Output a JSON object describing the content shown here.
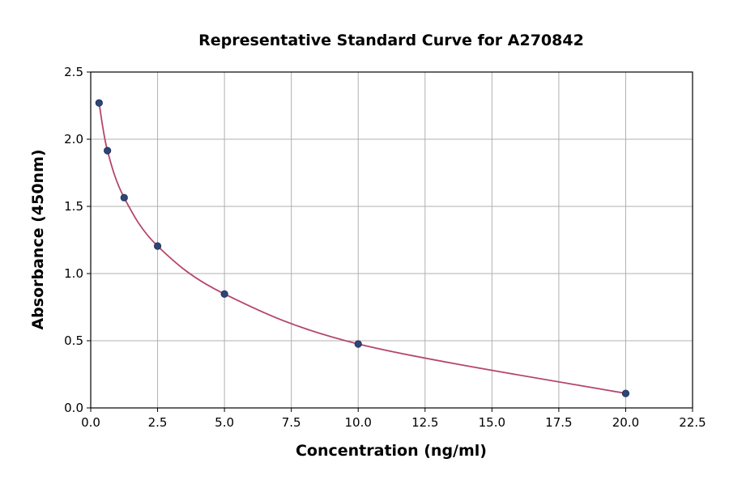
{
  "chart_data": {
    "type": "scatter",
    "title": "Representative Standard Curve for A270842",
    "xlabel": "Concentration (ng/ml)",
    "ylabel": "Absorbance (450nm)",
    "xlim": [
      0,
      22.5
    ],
    "ylim": [
      0,
      2.5
    ],
    "xticks": [
      "0.0",
      "2.5",
      "5.0",
      "7.5",
      "10.0",
      "12.5",
      "15.0",
      "17.5",
      "20.0",
      "22.5"
    ],
    "yticks": [
      "0.0",
      "0.5",
      "1.0",
      "1.5",
      "2.0",
      "2.5"
    ],
    "grid": true,
    "series": [
      {
        "x": [
          0.3125,
          0.625,
          1.25,
          2.5,
          5,
          10,
          20
        ],
        "y": [
          2.27,
          1.915,
          1.565,
          1.205,
          0.848,
          0.476,
          0.108
        ]
      }
    ],
    "fit_curve": true,
    "colors": {
      "points": "#2d4577",
      "curve": "#b5466b",
      "grid": "#b0b0b0"
    }
  }
}
